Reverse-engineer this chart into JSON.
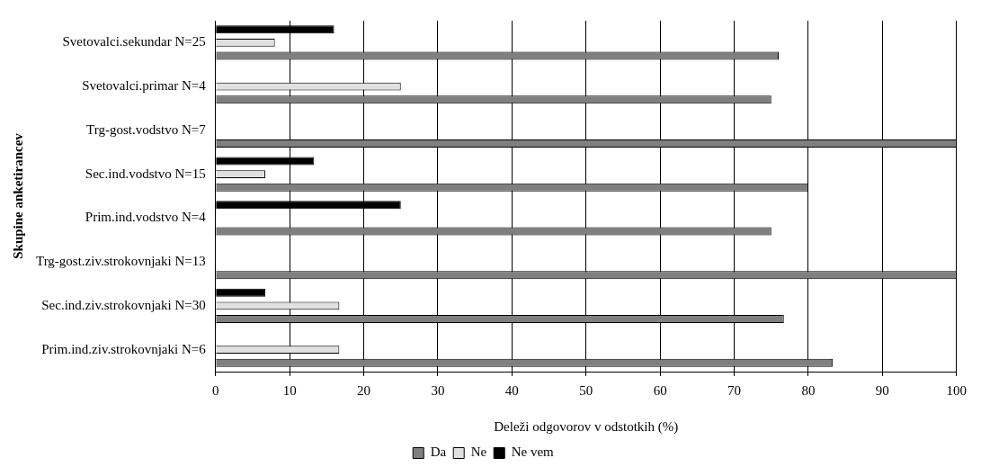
{
  "chart_data": {
    "type": "bar",
    "orientation": "horizontal",
    "xlabel": "Deleži odgovorov v odstotkih (%)",
    "ylabel": "Skupine anketirancev",
    "categories": [
      "Svetovalci.sekundar N=25",
      "Svetovalci.primar N=4",
      "Trg-gost.vodstvo N=7",
      "Sec.ind.vodstvo N=15",
      "Prim.ind.vodstvo N=4",
      "Trg-gost.ziv.strokovnjaki N=13",
      "Sec.ind.ziv.strokovnjaki N=30",
      "Prim.ind.ziv.strokovnjaki N=6"
    ],
    "series": [
      {
        "name": "Da",
        "color": "#7f7f7f",
        "values": [
          76,
          75,
          100,
          80,
          75,
          100,
          76.7,
          83.3
        ]
      },
      {
        "name": "Ne",
        "color": "#e0e0e0",
        "values": [
          8,
          25,
          0,
          6.7,
          0,
          0,
          16.7,
          16.7
        ]
      },
      {
        "name": "Ne vem",
        "color": "#000000",
        "values": [
          16,
          0,
          0,
          13.3,
          25,
          0,
          6.7,
          0
        ]
      }
    ],
    "xlim": [
      0,
      100
    ],
    "xticks": [
      0,
      10,
      20,
      30,
      40,
      50,
      60,
      70,
      80,
      90,
      100
    ],
    "grid": "x",
    "legend": "bottom"
  }
}
